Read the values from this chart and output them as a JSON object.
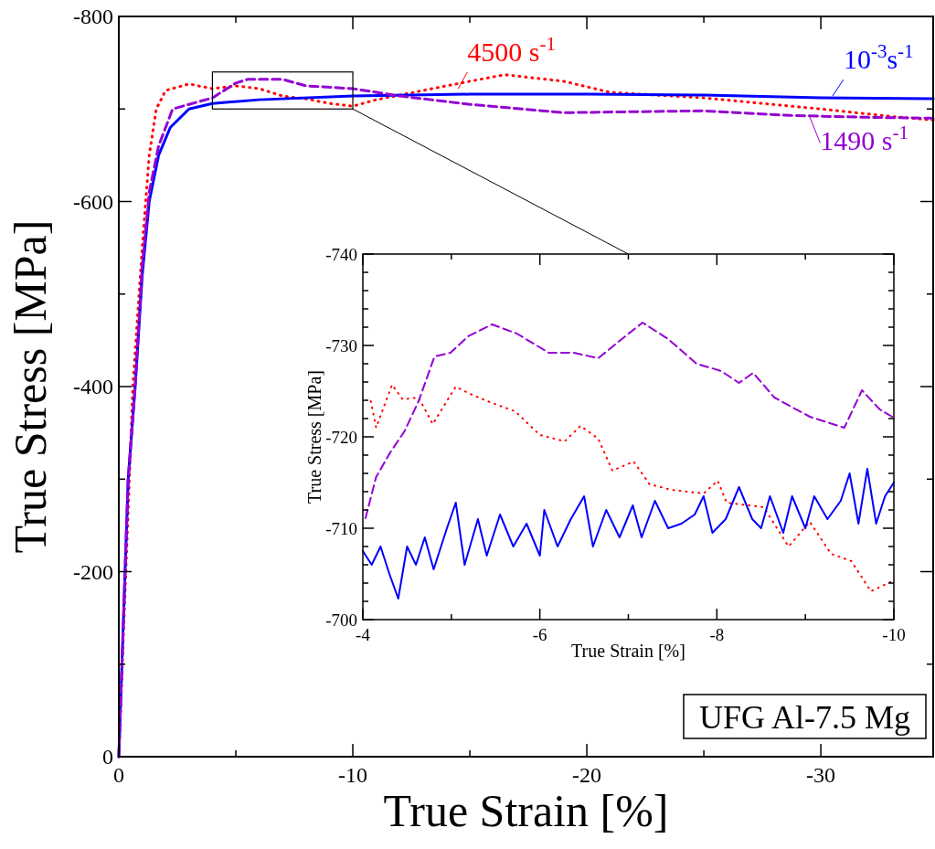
{
  "chart_data": [
    {
      "type": "line",
      "xlabel": "True Strain [%]",
      "ylabel": "True Stress [MPa]",
      "xlim": [
        0,
        -34.8
      ],
      "ylim": [
        0,
        -800
      ],
      "xticks": [
        0,
        {
          "value": -5,
          "label": null
        },
        -10,
        {
          "value": -15,
          "label": null
        },
        -20,
        {
          "value": -25,
          "label": null
        },
        -30
      ],
      "yticks": [
        0,
        {
          "value": -100,
          "label": null
        },
        -200,
        {
          "value": -300,
          "label": null
        },
        -400,
        {
          "value": -500,
          "label": null
        },
        -600,
        {
          "value": -700,
          "label": null
        },
        -800
      ],
      "series": [
        {
          "color": "#ff0000",
          "line_style": "dotted",
          "x": [
            0,
            -0.3,
            -0.6,
            -1,
            -1.3,
            -1.6,
            -2,
            -3,
            -4,
            -5,
            -6,
            -7,
            -8,
            -9,
            -10,
            -11,
            -13,
            -15,
            -16.5,
            -19,
            -21,
            -25,
            -30,
            -33,
            -34.8
          ],
          "values": [
            0,
            -200,
            -400,
            -550,
            -650,
            -700,
            -720,
            -727,
            -722,
            -725,
            -722,
            -714,
            -711,
            -706,
            -703,
            -710,
            -720,
            -730,
            -737,
            -730,
            -718,
            -712,
            -700,
            -692,
            -688
          ]
        },
        {
          "color": "#0000ff",
          "line_style": "solid",
          "x": [
            0,
            -0.2,
            -0.4,
            -0.7,
            -1,
            -1.3,
            -1.7,
            -2.2,
            -3,
            -4,
            -6,
            -10,
            -15,
            -20,
            -25,
            -30,
            -34.8
          ],
          "values": [
            0,
            -150,
            -300,
            -400,
            -520,
            -600,
            -650,
            -680,
            -700,
            -706,
            -710,
            -714,
            -716,
            -716,
            -715,
            -712,
            -711
          ]
        },
        {
          "color": "#9400d3",
          "line_style": "dashed",
          "x": [
            0,
            -0.2,
            -0.4,
            -0.7,
            -1,
            -1.3,
            -1.7,
            -2.3,
            -3,
            -4,
            -5,
            -5.5,
            -7,
            -8,
            -10,
            -12,
            -15,
            -19,
            -25,
            -28.7,
            -32,
            -34.8
          ],
          "values": [
            0,
            -150,
            -300,
            -400,
            -530,
            -610,
            -660,
            -700,
            -705,
            -712,
            -728,
            -732,
            -732,
            -725,
            -722,
            -714,
            -705,
            -696,
            -698,
            -693,
            -691,
            -690
          ]
        }
      ],
      "annotations": [
        {
          "text": "4500 s$^{-1}$",
          "x": -14.5,
          "y": -722
        },
        {
          "text": "10$^{-3}$s$^{-1}$",
          "x": -30.5,
          "y": -714
        },
        {
          "text": "1490 s$^{-1}$",
          "x": -29.5,
          "y": -693
        },
        "UFG Al-7.5 Mg"
      ]
    },
    {
      "type": "line",
      "xlabel": "True Strain [%]",
      "ylabel": "True Stress [MPa]",
      "xlim": [
        -4,
        -10
      ],
      "ylim": [
        -700,
        -740
      ],
      "xticks": [
        -4,
        {
          "value": -5,
          "label": null
        },
        -6,
        {
          "value": -7,
          "label": null
        },
        -8,
        {
          "value": -9,
          "label": null
        },
        -10
      ],
      "yticks": [
        -700,
        {
          "value": -702,
          "label": null
        },
        {
          "value": -704,
          "label": null
        },
        {
          "value": -706,
          "label": null
        },
        {
          "value": -708,
          "label": null
        },
        -710,
        {
          "value": -712,
          "label": null
        },
        {
          "value": -714,
          "label": null
        },
        {
          "value": -716,
          "label": null
        },
        {
          "value": -718,
          "label": null
        },
        -720,
        {
          "value": -722,
          "label": null
        },
        {
          "value": -724,
          "label": null
        },
        {
          "value": -726,
          "label": null
        },
        {
          "value": -728,
          "label": null
        },
        -730,
        {
          "value": -732,
          "label": null
        },
        {
          "value": -734,
          "label": null
        },
        {
          "value": -736,
          "label": null
        },
        {
          "value": -738,
          "label": null
        },
        -740
      ],
      "series": [
        {
          "color": "#ff0000",
          "line_style": "dotted",
          "x": [
            -4.09,
            -4.15,
            -4.33,
            -4.45,
            -4.63,
            -4.79,
            -5.05,
            -5.21,
            -5.46,
            -5.72,
            -6.0,
            -6.28,
            -6.46,
            -6.66,
            -6.82,
            -7.06,
            -7.24,
            -7.49,
            -7.85,
            -8.01,
            -8.11,
            -8.53,
            -8.81,
            -9.05,
            -9.29,
            -9.52,
            -9.74,
            -9.96
          ],
          "values": [
            -723.9,
            -721,
            -725.7,
            -724.1,
            -724.3,
            -721.4,
            -725.5,
            -724.7,
            -723.7,
            -722.8,
            -720.2,
            -719.5,
            -721.2,
            -719.8,
            -716.3,
            -717.3,
            -714.8,
            -714.2,
            -713.8,
            -715.2,
            -712.8,
            -712.3,
            -708,
            -710.7,
            -707.2,
            -706.4,
            -703.1,
            -704.1
          ]
        },
        {
          "color": "#0000ff",
          "line_style": "solid",
          "x": [
            -4.0,
            -4.1,
            -4.2,
            -4.3,
            -4.4,
            -4.5,
            -4.6,
            -4.7,
            -4.8,
            -4.95,
            -5.05,
            -5.15,
            -5.3,
            -5.4,
            -5.55,
            -5.7,
            -5.85,
            -6.0,
            -6.05,
            -6.2,
            -6.35,
            -6.5,
            -6.6,
            -6.75,
            -6.9,
            -7.05,
            -7.15,
            -7.3,
            -7.45,
            -7.6,
            -7.75,
            -7.85,
            -7.95,
            -8.1,
            -8.25,
            -8.4,
            -8.5,
            -8.6,
            -8.75,
            -8.85,
            -9.0,
            -9.1,
            -9.25,
            -9.4,
            -9.5,
            -9.6,
            -9.7,
            -9.8,
            -9.9,
            -10
          ],
          "values": [
            -707.5,
            -706,
            -708,
            -705,
            -702.3,
            -708,
            -706,
            -709,
            -705.5,
            -710,
            -712.8,
            -706,
            -711,
            -707,
            -711.5,
            -708,
            -710.5,
            -707,
            -712,
            -708,
            -711,
            -713.5,
            -708,
            -712,
            -709,
            -712.5,
            -709,
            -713,
            -710,
            -710.5,
            -711.5,
            -713.5,
            -709.5,
            -711,
            -714.5,
            -711,
            -710,
            -713.5,
            -709.5,
            -713.5,
            -710,
            -713.5,
            -711,
            -713,
            -716,
            -710.5,
            -716.5,
            -710.5,
            -713.5,
            -715
          ]
        },
        {
          "color": "#9400d3",
          "line_style": "dashed",
          "x": [
            -4.03,
            -4.15,
            -4.31,
            -4.47,
            -4.63,
            -4.81,
            -4.99,
            -5.19,
            -5.46,
            -5.74,
            -6.1,
            -6.38,
            -6.66,
            -6.9,
            -7.16,
            -7.45,
            -7.77,
            -8.05,
            -8.25,
            -8.41,
            -8.65,
            -9.05,
            -9.44,
            -9.64,
            -9.84,
            -9.98
          ],
          "values": [
            -711.1,
            -715.6,
            -718.3,
            -720.6,
            -723.9,
            -728.8,
            -729.2,
            -731,
            -732.3,
            -731.3,
            -729.2,
            -729.2,
            -728.6,
            -730.5,
            -732.5,
            -730.7,
            -728,
            -727.2,
            -725.9,
            -727,
            -724.3,
            -722.2,
            -721,
            -725.1,
            -723,
            -722.2
          ]
        }
      ]
    }
  ]
}
